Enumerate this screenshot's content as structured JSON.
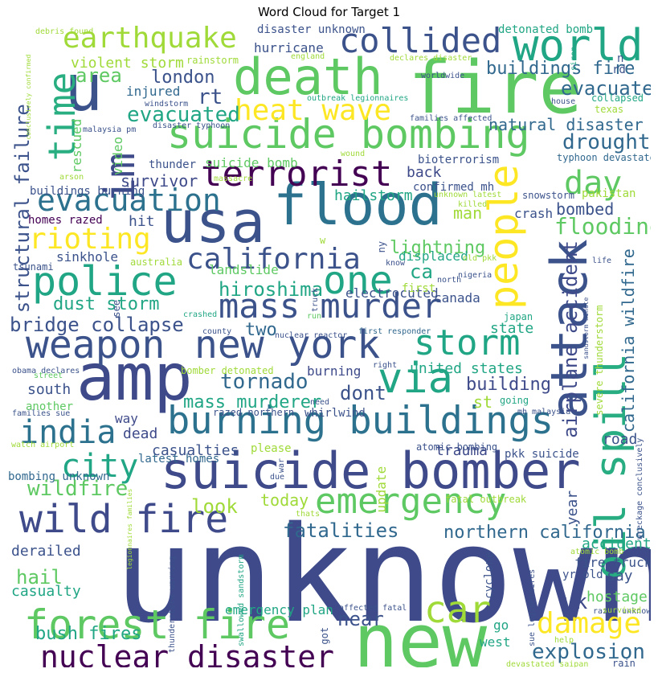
{
  "chart_data": {
    "type": "wordcloud",
    "title": "Word Cloud for Target 1",
    "palette": "viridis",
    "words": [
      {
        "text": "unknown",
        "color": "#3e4a89",
        "rot": 0
      },
      {
        "text": "new",
        "color": "#5ec962",
        "rot": 0
      },
      {
        "text": "fire",
        "color": "#5ec962",
        "rot": 0
      },
      {
        "text": "death",
        "color": "#5ec962",
        "rot": 0
      },
      {
        "text": "flood",
        "color": "#2c728e",
        "rot": 0
      },
      {
        "text": "usa",
        "color": "#3b528b",
        "rot": 0
      },
      {
        "text": "amp",
        "color": "#3e4a89",
        "rot": 0
      },
      {
        "text": "u",
        "color": "#3b528b",
        "rot": 0
      },
      {
        "text": "attack",
        "color": "#3b528b",
        "rot": 1
      },
      {
        "text": "world",
        "color": "#21a685",
        "rot": 0
      },
      {
        "text": "suicide bomber",
        "color": "#3e4a89",
        "rot": 0
      },
      {
        "text": "suicide bombing",
        "color": "#5ec962",
        "rot": 0
      },
      {
        "text": "burning buildings",
        "color": "#2c728e",
        "rot": 0
      },
      {
        "text": "weapon",
        "color": "#3b528b",
        "rot": 0
      },
      {
        "text": "new york",
        "color": "#3b528b",
        "rot": 0
      },
      {
        "text": "police",
        "color": "#21a685",
        "rot": 0
      },
      {
        "text": "via",
        "color": "#21a685",
        "rot": 0
      },
      {
        "text": "oil spill",
        "color": "#27ad81",
        "rot": 1
      },
      {
        "text": "terrorist",
        "color": "#440154",
        "rot": 0
      },
      {
        "text": "people",
        "color": "#fde725",
        "rot": 1
      },
      {
        "text": "forest fire",
        "color": "#5ec962",
        "rot": 0
      },
      {
        "text": "one",
        "color": "#21a685",
        "rot": 0
      },
      {
        "text": "time",
        "color": "#28ae80",
        "rot": 1
      },
      {
        "text": "wild fire",
        "color": "#3e4a89",
        "rot": 0
      },
      {
        "text": "mass murder",
        "color": "#3b528b",
        "rot": 0
      },
      {
        "text": "storm",
        "color": "#21a685",
        "rot": 0
      },
      {
        "text": "emergency",
        "color": "#5ec962",
        "rot": 0
      },
      {
        "text": "car",
        "color": "#a0da39",
        "rot": 0
      },
      {
        "text": "collided",
        "color": "#3b528b",
        "rot": 0
      },
      {
        "text": "earthquake",
        "color": "#a0da39",
        "rot": 0
      },
      {
        "text": "evacuation",
        "color": "#2c728e",
        "rot": 0
      },
      {
        "text": "im",
        "color": "#3e4a89",
        "rot": 1
      },
      {
        "text": "nuclear disaster",
        "color": "#440154",
        "rot": 0
      },
      {
        "text": "rioting",
        "color": "#fde725",
        "rot": 0
      },
      {
        "text": "california",
        "color": "#3b528b",
        "rot": 0
      },
      {
        "text": "heat wave",
        "color": "#fde725",
        "rot": 0
      },
      {
        "text": "india",
        "color": "#2c728e",
        "rot": 0
      },
      {
        "text": "damage",
        "color": "#fde725",
        "rot": 0
      },
      {
        "text": "city",
        "color": "#21a685",
        "rot": 0
      },
      {
        "text": "day",
        "color": "#5ec962",
        "rot": 0
      },
      {
        "text": "structural failure",
        "color": "#3b528b",
        "rot": 1
      },
      {
        "text": "airplane accident",
        "color": "#3e4a89",
        "rot": 1
      },
      {
        "text": "evacuated",
        "color": "#21a685",
        "rot": 0
      },
      {
        "text": "wildfire",
        "color": "#5ec962",
        "rot": 0
      },
      {
        "text": "hiroshima",
        "color": "#21a685",
        "rot": 0
      },
      {
        "text": "flooding",
        "color": "#5ec962",
        "rot": 0
      },
      {
        "text": "mass murderer",
        "color": "#21a685",
        "rot": 0
      },
      {
        "text": "bridge collapse",
        "color": "#3b528b",
        "rot": 0
      },
      {
        "text": "tornado",
        "color": "#31688e",
        "rot": 0
      },
      {
        "text": "fatalities",
        "color": "#31688e",
        "rot": 0
      },
      {
        "text": "northern california",
        "color": "#31688e",
        "rot": 0
      },
      {
        "text": "explosion",
        "color": "#31688e",
        "rot": 0
      },
      {
        "text": "california wildfire",
        "color": "#31688e",
        "rot": 1
      },
      {
        "text": "drought",
        "color": "#31688e",
        "rot": 0
      },
      {
        "text": "evacuate",
        "color": "#31688e",
        "rot": 0
      },
      {
        "text": "natural disaster",
        "color": "#31688e",
        "rot": 0
      },
      {
        "text": "buildings fire",
        "color": "#31688e",
        "rot": 0
      },
      {
        "text": "area",
        "color": "#5ec962",
        "rot": 0
      },
      {
        "text": "london",
        "color": "#3b528b",
        "rot": 0
      },
      {
        "text": "rt",
        "color": "#3b528b",
        "rot": 0
      },
      {
        "text": "dust storm",
        "color": "#21a685",
        "rot": 0
      },
      {
        "text": "building",
        "color": "#3e4a89",
        "rot": 0
      },
      {
        "text": "look",
        "color": "#a0da39",
        "rot": 0
      },
      {
        "text": "hail",
        "color": "#5ec962",
        "rot": 0
      },
      {
        "text": "bush fires",
        "color": "#21a685",
        "rot": 0
      },
      {
        "text": "near",
        "color": "#3b528b",
        "rot": 0
      },
      {
        "text": "uk",
        "color": "#3e4a89",
        "rot": 0
      },
      {
        "text": "hostage",
        "color": "#5ec962",
        "rot": 0
      },
      {
        "text": "two",
        "color": "#31688e",
        "rot": 0
      },
      {
        "text": "dont",
        "color": "#3b528b",
        "rot": 0
      },
      {
        "text": "lightning",
        "color": "#5ec962",
        "rot": 0
      },
      {
        "text": "ca",
        "color": "#21a685",
        "rot": 0
      },
      {
        "text": "man",
        "color": "#a0da39",
        "rot": 0
      },
      {
        "text": "bombed",
        "color": "#3b528b",
        "rot": 0
      },
      {
        "text": "survivor",
        "color": "#3e4a89",
        "rot": 0
      },
      {
        "text": "suicide bomb",
        "color": "#5ec962",
        "rot": 0
      },
      {
        "text": "hailstorm",
        "color": "#21a685",
        "rot": 0
      },
      {
        "text": "back",
        "color": "#3e4a89",
        "rot": 0
      },
      {
        "text": "landslide",
        "color": "#5ec962",
        "rot": 0
      },
      {
        "text": "sinkhole",
        "color": "#3b528b",
        "rot": 0
      },
      {
        "text": "hit",
        "color": "#3b528b",
        "rot": 0
      },
      {
        "text": "violent storm",
        "color": "#a0da39",
        "rot": 0
      },
      {
        "text": "injured",
        "color": "#31688e",
        "rot": 0
      },
      {
        "text": "rescued",
        "color": "#5ec962",
        "rot": 1
      },
      {
        "text": "video",
        "color": "#5ec962",
        "rot": 1
      },
      {
        "text": "united states",
        "color": "#21a685",
        "rot": 0
      },
      {
        "text": "burning",
        "color": "#3e4a89",
        "rot": 0
      },
      {
        "text": "south",
        "color": "#3b528b",
        "rot": 0
      },
      {
        "text": "st",
        "color": "#a0da39",
        "rot": 0
      },
      {
        "text": "state",
        "color": "#21a685",
        "rot": 0
      },
      {
        "text": "canada",
        "color": "#3b528b",
        "rot": 0
      },
      {
        "text": "electrocuted",
        "color": "#3b528b",
        "rot": 0
      },
      {
        "text": "displaced",
        "color": "#21a685",
        "rot": 0
      },
      {
        "text": "crash",
        "color": "#3b528b",
        "rot": 0
      },
      {
        "text": "way",
        "color": "#3e4a89",
        "rot": 0
      },
      {
        "text": "dead",
        "color": "#3e4a89",
        "rot": 0
      },
      {
        "text": "casualties",
        "color": "#3b528b",
        "rot": 0
      },
      {
        "text": "trauma",
        "color": "#3e4a89",
        "rot": 0
      },
      {
        "text": "road",
        "color": "#3b528b",
        "rot": 0
      },
      {
        "text": "today",
        "color": "#a0da39",
        "rot": 0
      },
      {
        "text": "year",
        "color": "#3b528b",
        "rot": 1
      },
      {
        "text": "accident",
        "color": "#21a685",
        "rot": 0
      },
      {
        "text": "derailed",
        "color": "#3b528b",
        "rot": 0
      },
      {
        "text": "casualty",
        "color": "#21a685",
        "rot": 0
      },
      {
        "text": "say",
        "color": "#3b528b",
        "rot": 0
      },
      {
        "text": "fire truck",
        "color": "#3b528b",
        "rot": 0
      },
      {
        "text": "emergency plan",
        "color": "#21a685",
        "rot": 0
      },
      {
        "text": "west",
        "color": "#21a685",
        "rot": 0
      },
      {
        "text": "go",
        "color": "#21a685",
        "rot": 0
      },
      {
        "text": "hurricane",
        "color": "#3b528b",
        "rot": 0
      },
      {
        "text": "disaster unknown",
        "color": "#3b528b",
        "rot": 0
      },
      {
        "text": "detonated bomb",
        "color": "#21a685",
        "rot": 0
      },
      {
        "text": "bioterrorism",
        "color": "#3b528b",
        "rot": 0
      },
      {
        "text": "confirmed mh",
        "color": "#3b528b",
        "rot": 0
      },
      {
        "text": "update",
        "color": "#a0da39",
        "rot": 1
      },
      {
        "text": "thunder",
        "color": "#3b528b",
        "rot": 0
      },
      {
        "text": "pkk suicide",
        "color": "#3b528b",
        "rot": 0
      },
      {
        "text": "first",
        "color": "#a0da39",
        "rot": 0
      },
      {
        "text": "whirlwind",
        "color": "#3b528b",
        "rot": 0
      },
      {
        "text": "latest homes",
        "color": "#31688e",
        "rot": 0
      },
      {
        "text": "bomber detonated",
        "color": "#a0da39",
        "rot": 0
      },
      {
        "text": "pakistan",
        "color": "#a0da39",
        "rot": 0
      },
      {
        "text": "homes razed",
        "color": "#440154",
        "rot": 0
      },
      {
        "text": "buildings burning",
        "color": "#3b528b",
        "rot": 0
      },
      {
        "text": "bombing unknown",
        "color": "#31688e",
        "rot": 0
      },
      {
        "text": "cyclone",
        "color": "#3b528b",
        "rot": 1
      },
      {
        "text": "yr old",
        "color": "#3b528b",
        "rot": 0
      },
      {
        "text": "snowstorm",
        "color": "#3b528b",
        "rot": 0
      },
      {
        "text": "typhoon devastated",
        "color": "#31688e",
        "rot": 0
      },
      {
        "text": "australia",
        "color": "#a0da39",
        "rot": 0
      },
      {
        "text": "razed northern",
        "color": "#3b528b",
        "rot": 0
      },
      {
        "text": "please",
        "color": "#a0da39",
        "rot": 0
      },
      {
        "text": "atomic bombing",
        "color": "#3b528b",
        "rot": 0
      },
      {
        "text": "another",
        "color": "#5ec962",
        "rot": 0
      },
      {
        "text": "tsunami",
        "color": "#3b528b",
        "rot": 0
      },
      {
        "text": "japan",
        "color": "#21a685",
        "rot": 0
      },
      {
        "text": "severe thunderstorm",
        "color": "#a0da39",
        "rot": 1
      },
      {
        "text": "rainstorm",
        "color": "#a0da39",
        "rot": 0
      },
      {
        "text": "collapsed",
        "color": "#21a685",
        "rot": 0
      },
      {
        "text": "texas",
        "color": "#a0da39",
        "rot": 0
      },
      {
        "text": "rain",
        "color": "#3b528b",
        "rot": 0
      },
      {
        "text": "wreckage conclusively",
        "color": "#3b528b",
        "rot": 1
      },
      {
        "text": "thunderstorm warning",
        "color": "#3b528b",
        "rot": 1
      },
      {
        "text": "swallowed sandstorm",
        "color": "#21a685",
        "rot": 1
      },
      {
        "text": "fatal outbreak",
        "color": "#a0da39",
        "rot": 0
      },
      {
        "text": "atomic bomb",
        "color": "#a0da39",
        "rot": 0
      },
      {
        "text": "razed unknown",
        "color": "#3b528b",
        "rot": 0
      },
      {
        "text": "affected fatal",
        "color": "#3b528b",
        "rot": 0
      },
      {
        "text": "devastated saipan",
        "color": "#a0da39",
        "rot": 0
      },
      {
        "text": "help",
        "color": "#a0da39",
        "rot": 0
      },
      {
        "text": "sue legionnaires",
        "color": "#3b528b",
        "rot": 1
      },
      {
        "text": "legionnaires families",
        "color": "#a0da39",
        "rot": 1
      },
      {
        "text": "mh malaysia",
        "color": "#3b528b",
        "rot": 0
      },
      {
        "text": "survived",
        "color": "#a0da39",
        "rot": 0
      },
      {
        "text": "going",
        "color": "#21a685",
        "rot": 0
      },
      {
        "text": "need",
        "color": "#3b528b",
        "rot": 0
      },
      {
        "text": "right",
        "color": "#3b528b",
        "rot": 0
      },
      {
        "text": "county",
        "color": "#3b528b",
        "rot": 0
      },
      {
        "text": "nuclear reactor",
        "color": "#3b528b",
        "rot": 0
      },
      {
        "text": "first responder",
        "color": "#31688e",
        "rot": 0
      },
      {
        "text": "sandstorm minute",
        "color": "#3b528b",
        "rot": 1
      },
      {
        "text": "obama declares",
        "color": "#3b528b",
        "rot": 0
      },
      {
        "text": "street",
        "color": "#5ec962",
        "rot": 0
      },
      {
        "text": "families sue",
        "color": "#3b528b",
        "rot": 0
      },
      {
        "text": "watch airport",
        "color": "#a0da39",
        "rot": 0
      },
      {
        "text": "war",
        "color": "#3b528b",
        "rot": 1
      },
      {
        "text": "due",
        "color": "#3b528b",
        "rot": 0
      },
      {
        "text": "thats",
        "color": "#a0da39",
        "rot": 0
      },
      {
        "text": "got",
        "color": "#3b528b",
        "rot": 1
      },
      {
        "text": "crashed",
        "color": "#21a685",
        "rot": 0
      },
      {
        "text": "see",
        "color": "#3b528b",
        "rot": 1
      },
      {
        "text": "run",
        "color": "#5ec962",
        "rot": 0
      },
      {
        "text": "truck",
        "color": "#3b528b",
        "rot": 1
      },
      {
        "text": "north",
        "color": "#3b528b",
        "rot": 0
      },
      {
        "text": "nigeria",
        "color": "#3b528b",
        "rot": 0
      },
      {
        "text": "old pkk",
        "color": "#a0da39",
        "rot": 0
      },
      {
        "text": "know",
        "color": "#3b528b",
        "rot": 0
      },
      {
        "text": "ny",
        "color": "#3b528b",
        "rot": 1
      },
      {
        "text": "life",
        "color": "#3b528b",
        "rot": 0
      },
      {
        "text": "w",
        "color": "#a0da39",
        "rot": 0
      },
      {
        "text": "massacre",
        "color": "#a0da39",
        "rot": 0
      },
      {
        "text": "arson",
        "color": "#a0da39",
        "rot": 0
      },
      {
        "text": "killed",
        "color": "#a0da39",
        "rot": 0
      },
      {
        "text": "unknown latest",
        "color": "#a0da39",
        "rot": 0
      },
      {
        "text": "wound",
        "color": "#a0da39",
        "rot": 0
      },
      {
        "text": "disaster typhoon",
        "color": "#3b528b",
        "rot": 0
      },
      {
        "text": "malaysia pm",
        "color": "#3b528b",
        "rot": 0
      },
      {
        "text": "windstorm",
        "color": "#3b528b",
        "rot": 0
      },
      {
        "text": "conclusively confirmed",
        "color": "#a0da39",
        "rot": 1
      },
      {
        "text": "debris found",
        "color": "#a0da39",
        "rot": 0
      },
      {
        "text": "england",
        "color": "#a0da39",
        "rot": 0
      },
      {
        "text": "declares disaster",
        "color": "#a0da39",
        "rot": 0
      },
      {
        "text": "worldwide",
        "color": "#3b528b",
        "rot": 0
      },
      {
        "text": "outbreak legionnaires",
        "color": "#21a685",
        "rot": 0
      },
      {
        "text": "families affected",
        "color": "#3b528b",
        "rot": 0
      },
      {
        "text": "house",
        "color": "#3b528b",
        "rot": 0
      },
      {
        "text": "siren",
        "color": "#21a685",
        "rot": 1
      },
      {
        "text": "rd",
        "color": "#3b528b",
        "rot": 0
      },
      {
        "text": "n",
        "color": "#3b528b",
        "rot": 0
      }
    ]
  }
}
